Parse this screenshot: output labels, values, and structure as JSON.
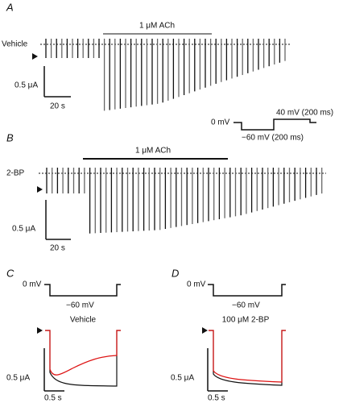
{
  "panels": [
    {
      "label": "A",
      "drug": "1 μM ACh",
      "trace": "Vehicle",
      "scale_current": "0.5 μA",
      "scale_time": "20 s",
      "protocol": {
        "hold": "0 mV",
        "step_down": "−60 mV (200 ms)",
        "step_up": "40 mV (200 ms)"
      }
    },
    {
      "label": "B",
      "drug": "1 μM ACh",
      "trace": "2-BP",
      "scale_current": "0.5 μA",
      "scale_time": "20 s"
    },
    {
      "label": "C",
      "hold": "0 mV",
      "step": "−60 mV",
      "condition": "Vehicle",
      "scale_current": "0.5 μA",
      "scale_time": "0.5 s"
    },
    {
      "label": "D",
      "hold": "0 mV",
      "step": "−60 mV",
      "condition": "100 μM 2-BP",
      "scale_current": "0.5 μA",
      "scale_time": "0.5 s"
    }
  ]
}
